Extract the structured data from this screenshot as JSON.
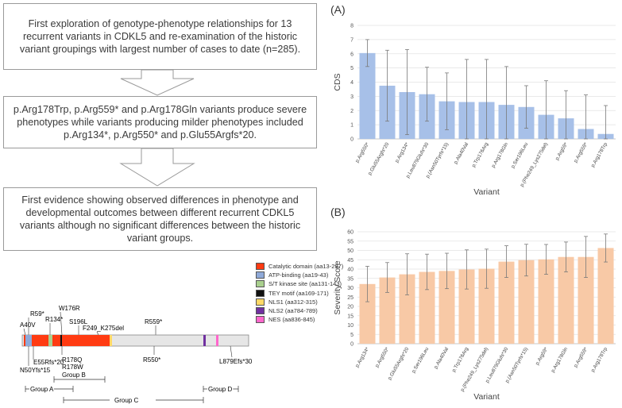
{
  "flowchart": {
    "box1": "First exploration of genotype-phenotype relationships for 13 recurrent variants in CDKL5 and re-examination of the historic variant groupings with largest number of cases to date (n=285).",
    "box2": "p.Arg178Trp, p.Arg559* and p.Arg178Gln variants produce severe phenotypes while variants producing milder phenotypes included p.Arg134*, p.Arg550* and p.Glu55Argfs*20.",
    "box3": "First evidence showing observed differences in phenotype and developmental outcomes between different recurrent CDKL5 variants although no significant differences between the historic variant groups."
  },
  "protein_map": {
    "legend": [
      {
        "label": "Catalytic domain (aa13-297)",
        "color": "#ff3b12"
      },
      {
        "label": "ATP-binding (aa19-43)",
        "color": "#8fa9d8"
      },
      {
        "label": "S/T kinase site (aa131-143)",
        "color": "#a9d08e"
      },
      {
        "label": "TEY motif (aa169-171)",
        "color": "#111111"
      },
      {
        "label": "NLS1 (aa312-315)",
        "color": "#ffd966"
      },
      {
        "label": "NLS2 (aa784-789)",
        "color": "#7030a0"
      },
      {
        "label": "NES (aa836-845)",
        "color": "#ff66cc"
      }
    ],
    "labels_top": [
      "R59*",
      "W176R",
      "A40V",
      "R134*",
      "S196L",
      "F249_K275del",
      "R559*"
    ],
    "labels_bottom": [
      "E55Rfs*20",
      "N50Yfs*15",
      "R178Q",
      "R178W",
      "R550*",
      "L879Efs*30"
    ],
    "groups": [
      "Group A",
      "Group B",
      "Group C",
      "Group D"
    ]
  },
  "chart_data": [
    {
      "panel": "(A)",
      "type": "bar",
      "categories": [
        "p.Arg550*",
        "p.Glu55Argfs*20",
        "p.Arg134*",
        "p.Leu879Glufs*30",
        "p.(Asn50Tyrfs*15)",
        "p.Ala40Val",
        "p.Trp176Arg",
        "p.Arg178Gln",
        "p.Ser196Leu",
        "p.(Phe249_Lys275del)",
        "p.Arg59*",
        "p.Arg559*",
        "p.Arg178Trp"
      ],
      "values": [
        6.05,
        3.75,
        3.3,
        3.15,
        2.65,
        2.6,
        2.6,
        2.4,
        2.25,
        1.7,
        1.45,
        0.7,
        0.35
      ],
      "error": [
        0.95,
        2.5,
        3.0,
        1.9,
        2.0,
        3.0,
        3.0,
        2.7,
        1.5,
        2.4,
        1.95,
        2.4,
        2.0
      ],
      "ylabel": "CDS",
      "xlabel": "Variant",
      "ylim": [
        0,
        8
      ],
      "yticks": [
        "0",
        "1",
        "2",
        "3",
        "4",
        "5",
        "6",
        "7",
        "8"
      ],
      "bar_color": "#a7c0e8"
    },
    {
      "panel": "(B)",
      "type": "bar",
      "categories": [
        "p.Arg134*",
        "p.Arg550*",
        "p.Glu55Argfs*20",
        "p.Ser196Leu",
        "p.Ala40Val",
        "p.Trp176Arg",
        "p.(Phe249_Lys275del)",
        "p.Leu879Glufs*30",
        "p.(Asn50Tyrfs*15)",
        "p.Arg59*",
        "p.Arg178Gln",
        "p.Arg559*",
        "p.Arg178Trp"
      ],
      "values": [
        32,
        35.5,
        37.2,
        38.5,
        39,
        39.8,
        40.2,
        44,
        44.8,
        45.2,
        46.5,
        46.5,
        51.3
      ],
      "error": [
        9.5,
        8.0,
        11.0,
        9.5,
        9.5,
        10.5,
        10.5,
        8.5,
        8.5,
        8.0,
        8.0,
        11.0,
        7.5
      ],
      "ylabel": "Severity Score",
      "xlabel": "Variant",
      "ylim": [
        0,
        60
      ],
      "yticks": [
        "0",
        "5",
        "10",
        "15",
        "20",
        "25",
        "30",
        "35",
        "40",
        "45",
        "50",
        "55",
        "60"
      ],
      "bar_color": "#f8c9a6"
    }
  ]
}
